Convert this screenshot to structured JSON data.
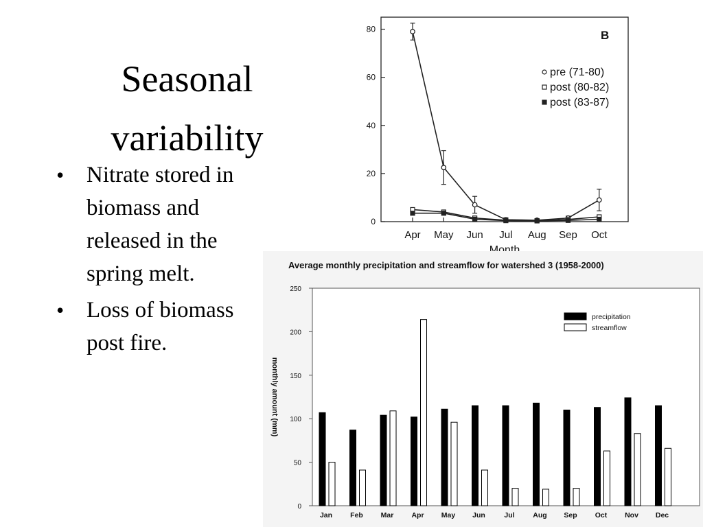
{
  "slide": {
    "title": "Seasonal variability",
    "bullets": [
      "Nitrate stored in biomass and released in the spring melt.",
      "Loss of biomass post fire."
    ]
  },
  "chart_data": [
    {
      "type": "line",
      "panel_label": "B",
      "xlabel": "Month",
      "ylabel": "",
      "categories": [
        "Apr",
        "May",
        "Jun",
        "Jul",
        "Aug",
        "Sep",
        "Oct"
      ],
      "ylim": [
        0,
        85
      ],
      "yticks": [
        0,
        20,
        40,
        60,
        80
      ],
      "legend_position": "top-right",
      "grid": false,
      "series": [
        {
          "name": "pre (71-80)",
          "marker": "open-circle",
          "values": [
            79,
            22.5,
            7,
            0.8,
            0.6,
            1.5,
            9
          ],
          "error": [
            3.5,
            7,
            3.5,
            0.8,
            0.5,
            0.8,
            4.5
          ]
        },
        {
          "name": "post (80-82)",
          "marker": "open-square",
          "values": [
            5,
            4,
            1.5,
            0.6,
            0.4,
            0.9,
            2
          ],
          "error": [
            0,
            0,
            0,
            0,
            0,
            0,
            0
          ]
        },
        {
          "name": "post (83-87)",
          "marker": "filled-square",
          "values": [
            3.5,
            3.5,
            1,
            0.4,
            0.3,
            0.5,
            1
          ],
          "error": [
            0,
            0,
            0,
            0,
            0,
            0,
            0
          ]
        }
      ]
    },
    {
      "type": "bar",
      "title": "Average monthly precipitation and streamflow for watershed 3 (1958-2000)",
      "xlabel": "",
      "ylabel": "monthly amount (mm)",
      "categories": [
        "Jan",
        "Feb",
        "Mar",
        "Apr",
        "May",
        "Jun",
        "Jul",
        "Aug",
        "Sep",
        "Oct",
        "Nov",
        "Dec"
      ],
      "ylim": [
        0,
        250
      ],
      "yticks": [
        0,
        50,
        100,
        150,
        200,
        250
      ],
      "legend_position": "top-right",
      "grid": false,
      "series": [
        {
          "name": "precipitation",
          "color": "#000000",
          "values": [
            107,
            87,
            104,
            102,
            111,
            115,
            115,
            118,
            110,
            113,
            124,
            115
          ]
        },
        {
          "name": "streamflow",
          "color": "#ffffff",
          "values": [
            50,
            41,
            109,
            214,
            96,
            41,
            20,
            19,
            20,
            63,
            83,
            66
          ]
        }
      ]
    }
  ]
}
